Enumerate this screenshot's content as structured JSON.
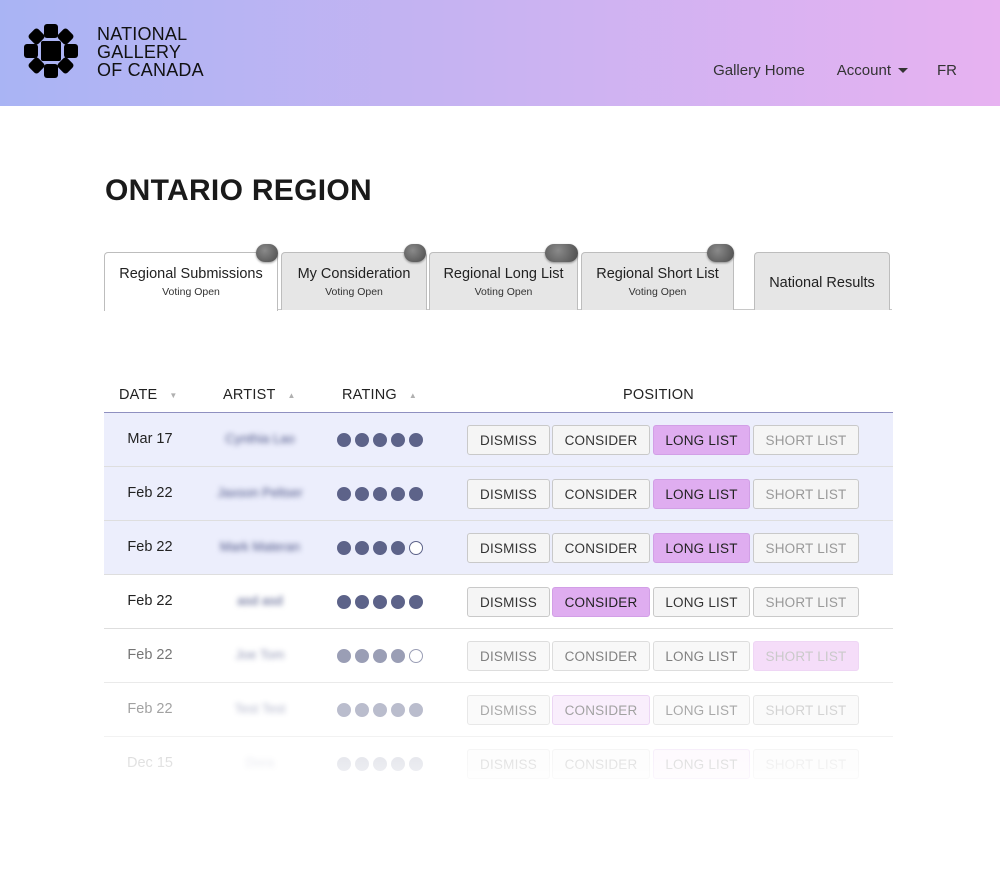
{
  "header": {
    "org_name": [
      "NATIONAL",
      "GALLERY",
      "OF CANADA"
    ],
    "nav": {
      "gallery_home": "Gallery Home",
      "account": "Account",
      "language": "FR"
    },
    "colors": {
      "gradient_start": "#a9b4f4",
      "gradient_end": "#e7b2f1"
    }
  },
  "page": {
    "title": "ONTARIO REGION"
  },
  "tabs": [
    {
      "label": "Regional Submissions",
      "sub": "Voting Open",
      "active": true,
      "badge": true
    },
    {
      "label": "My Consideration",
      "sub": "Voting Open",
      "active": false,
      "badge": true
    },
    {
      "label": "Regional Long List",
      "sub": "Voting Open",
      "active": false,
      "badge": true
    },
    {
      "label": "Regional Short List",
      "sub": "Voting Open",
      "active": false,
      "badge": true
    },
    {
      "label": "National Results",
      "sub": "",
      "active": false,
      "badge": false
    }
  ],
  "table": {
    "headers": {
      "date": "DATE",
      "artist": "ARTIST",
      "rating": "RATING",
      "position": "POSITION"
    },
    "buttons": {
      "dismiss": "DISMISS",
      "consider": "CONSIDER",
      "long_list": "LONG LIST",
      "short_list": "SHORT LIST"
    },
    "rows": [
      {
        "date": "Mar 17",
        "artist": "Cynthia Lao",
        "rating": 5,
        "position": "long_list"
      },
      {
        "date": "Feb 22",
        "artist": "Jaxson Peltser",
        "rating": 5,
        "position": "long_list"
      },
      {
        "date": "Feb 22",
        "artist": "Mark Materan",
        "rating": 4,
        "position": "long_list"
      },
      {
        "date": "Feb 22",
        "artist": "asd asd",
        "rating": 5,
        "position": "consider"
      },
      {
        "date": "Feb 22",
        "artist": "Joe Tom",
        "rating": 4,
        "position": "short_list"
      },
      {
        "date": "Feb 22",
        "artist": "Test Test",
        "rating": 5,
        "position": "consider"
      },
      {
        "date": "Dec 15",
        "artist": "Dora",
        "rating": 5,
        "position": "long_list"
      }
    ]
  },
  "colors": {
    "active_position": "#dfadf0",
    "rating_dot": "#5d6389",
    "row_highlight": "#eceefc"
  }
}
